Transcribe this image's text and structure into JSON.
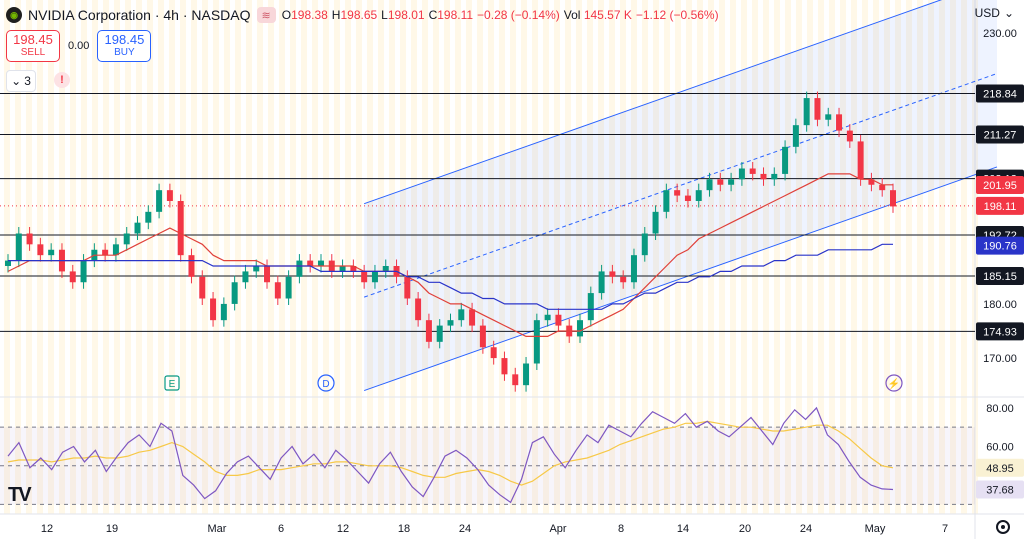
{
  "header": {
    "symbol_title": "NVIDIA Corporation · 4h · NASDAQ",
    "flag_icon": "wave-icon",
    "ohlc": {
      "open_label": "O",
      "open": "198.38",
      "high_label": "H",
      "high": "198.65",
      "low_label": "L",
      "low": "198.01",
      "close_label": "C",
      "close": "198.11",
      "change": "−0.28 (−0.14%)",
      "vol_label": "Vol",
      "vol": "145.57 K",
      "vol_change": "−1.12 (−0.56%)"
    }
  },
  "trade": {
    "sell_price": "198.45",
    "sell_label": "SELL",
    "spread": "0.00",
    "buy_price": "198.45",
    "buy_label": "BUY"
  },
  "indicators_toggle": {
    "count": "3",
    "icon": "chevron-down-icon"
  },
  "warning_icon": "!",
  "currency": "USD",
  "colors": {
    "up": "#089981",
    "down": "#f23645",
    "ma_fast": "#e0413a",
    "ma_slow": "#2a34c9",
    "channel": "#2962ff",
    "rsi": "#7e57c2",
    "rsi_ma": "#f7c948",
    "vband": "#fff3d6"
  },
  "chart_data": [
    {
      "type": "candlestick",
      "title": "",
      "x_tick_labels": [
        "12",
        "19",
        "Mar",
        "6",
        "12",
        "18",
        "24",
        "Apr",
        "8",
        "14",
        "20",
        "24",
        "May",
        "7"
      ],
      "y_tick_labels": [
        "230.00",
        "180.00",
        "170.00"
      ],
      "ylim": [
        163,
        235
      ],
      "horizontal_levels": [
        218.84,
        211.27,
        203.13,
        192.72,
        185.15,
        174.93
      ],
      "price_labels": {
        "last": 198.11,
        "ma_fast": 201.95,
        "ma_slow": 190.76
      },
      "close_path": [
        188,
        193,
        191,
        189,
        190,
        186,
        184,
        188,
        190,
        189,
        191,
        193,
        195,
        197,
        201,
        199,
        189,
        185,
        181,
        177,
        180,
        184,
        186,
        187,
        184,
        181,
        185,
        188,
        187,
        188,
        186,
        187,
        186,
        184,
        186,
        187,
        185,
        181,
        177,
        173,
        176,
        177,
        179,
        176,
        172,
        170,
        167,
        165,
        169,
        177,
        178,
        176,
        174,
        177,
        182,
        186,
        185,
        184,
        189,
        193,
        197,
        201,
        200,
        199,
        201,
        203,
        202,
        203,
        205,
        204,
        203,
        204,
        209,
        213,
        218,
        214,
        215,
        212,
        210,
        203,
        202,
        201,
        198
      ],
      "ma_fast_path": [
        186,
        187,
        188,
        188,
        188,
        188,
        188,
        188,
        189,
        189,
        189,
        190,
        191,
        192,
        193,
        194,
        193,
        192,
        191,
        189,
        188,
        188,
        188,
        188,
        187,
        187,
        187,
        187,
        187,
        187,
        187,
        187,
        187,
        186,
        186,
        186,
        186,
        185,
        184,
        182,
        181,
        180,
        180,
        179,
        178,
        177,
        176,
        175,
        174,
        174,
        174,
        175,
        175,
        175,
        176,
        177,
        178,
        179,
        181,
        183,
        185,
        187,
        189,
        190,
        192,
        193,
        194,
        195,
        196,
        197,
        198,
        199,
        200,
        201,
        202,
        203,
        204,
        204,
        204,
        203,
        203,
        202,
        202
      ],
      "ma_slow_path": [
        188,
        188,
        188,
        188,
        188,
        188,
        188,
        188,
        188,
        188,
        188,
        188,
        188,
        188,
        188,
        188,
        188,
        188,
        188,
        187,
        187,
        187,
        187,
        187,
        187,
        187,
        187,
        187,
        187,
        186,
        186,
        186,
        186,
        186,
        186,
        186,
        186,
        185,
        185,
        184,
        184,
        183,
        182,
        182,
        181,
        181,
        180,
        180,
        180,
        180,
        179,
        179,
        179,
        179,
        179,
        179,
        180,
        180,
        181,
        182,
        182,
        183,
        184,
        184,
        185,
        185,
        186,
        186,
        187,
        187,
        187,
        188,
        188,
        189,
        189,
        189,
        190,
        190,
        190,
        190,
        190,
        191,
        191
      ],
      "channel": {
        "lower_start": [
          33,
          164
        ],
        "lower_end": [
          82,
          198.5
        ],
        "offset": 15
      }
    },
    {
      "type": "line",
      "title": "",
      "y_tick_labels": [
        "80.00",
        "60.00"
      ],
      "ylim": [
        25,
        82
      ],
      "reference_levels": [
        70,
        50,
        30
      ],
      "rsi_path": [
        55,
        62,
        49,
        54,
        48,
        57,
        60,
        52,
        58,
        47,
        55,
        62,
        66,
        60,
        72,
        68,
        45,
        40,
        33,
        37,
        46,
        52,
        55,
        49,
        43,
        54,
        60,
        51,
        56,
        49,
        58,
        53,
        47,
        41,
        51,
        57,
        47,
        39,
        34,
        44,
        55,
        58,
        54,
        48,
        40,
        35,
        31,
        43,
        62,
        65,
        56,
        49,
        58,
        66,
        62,
        71,
        68,
        65,
        72,
        78,
        75,
        72,
        77,
        70,
        73,
        68,
        65,
        70,
        75,
        68,
        61,
        72,
        79,
        74,
        80,
        66,
        61,
        52,
        44,
        40,
        38,
        37.68
      ],
      "rsi_ma_path": [
        52,
        53,
        53,
        53,
        52,
        53,
        54,
        54,
        55,
        54,
        54,
        55,
        57,
        58,
        60,
        62,
        60,
        56,
        52,
        47,
        45,
        45,
        46,
        48,
        48,
        48,
        49,
        50,
        51,
        51,
        52,
        52,
        51,
        50,
        50,
        50,
        49,
        47,
        45,
        44,
        44,
        46,
        47,
        48,
        47,
        45,
        42,
        40,
        42,
        46,
        50,
        52,
        53,
        54,
        56,
        58,
        61,
        63,
        65,
        67,
        69,
        70,
        72,
        72,
        73,
        72,
        71,
        70,
        70,
        69,
        68,
        68,
        69,
        70,
        71,
        71,
        68,
        64,
        59,
        54,
        50,
        48.95
      ],
      "value_labels": {
        "rsi_ma": 48.95,
        "rsi": 37.68
      }
    }
  ],
  "event_markers": [
    {
      "label": "E",
      "icon": "earnings-icon"
    },
    {
      "label": "D",
      "icon": "dividend-icon"
    },
    {
      "label": "⚡",
      "icon": "lightning-icon"
    }
  ],
  "branding": {
    "logo_text": "TV"
  }
}
